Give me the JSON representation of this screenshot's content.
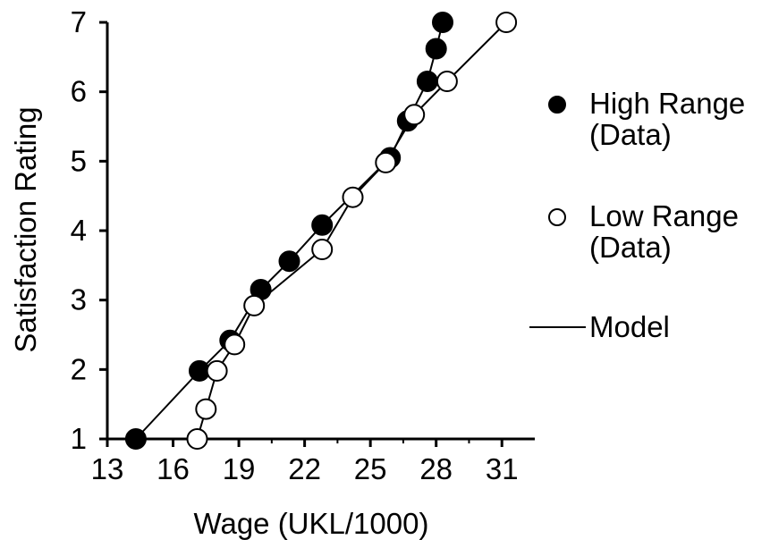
{
  "chart_data": {
    "type": "scatter",
    "title": "",
    "xlabel": "Wage (UKL/1000)",
    "ylabel": "Satisfaction Rating",
    "xlim": [
      13,
      32.5
    ],
    "ylim": [
      1,
      7
    ],
    "xticks": [
      13,
      16,
      19,
      22,
      25,
      28,
      31
    ],
    "yticks": [
      1,
      2,
      3,
      4,
      5,
      6,
      7
    ],
    "grid": false,
    "legend_placement": "right",
    "series": [
      {
        "name": "High Range (Data)",
        "marker": "filled-circle",
        "color": "#000000",
        "points": [
          {
            "x": 14.3,
            "y": 1.0
          },
          {
            "x": 17.2,
            "y": 1.98
          },
          {
            "x": 18.6,
            "y": 2.42
          },
          {
            "x": 20.0,
            "y": 3.15
          },
          {
            "x": 21.3,
            "y": 3.56
          },
          {
            "x": 22.8,
            "y": 4.08
          },
          {
            "x": 25.9,
            "y": 5.05
          },
          {
            "x": 26.7,
            "y": 5.58
          },
          {
            "x": 27.6,
            "y": 6.15
          },
          {
            "x": 28.0,
            "y": 6.62
          },
          {
            "x": 28.3,
            "y": 7.0
          }
        ],
        "model": [
          {
            "x": 14.3,
            "y": 1.0
          },
          {
            "x": 17.2,
            "y": 1.98
          },
          {
            "x": 18.6,
            "y": 2.42
          },
          {
            "x": 20.0,
            "y": 3.15
          },
          {
            "x": 21.3,
            "y": 3.56
          },
          {
            "x": 22.8,
            "y": 4.08
          },
          {
            "x": 25.9,
            "y": 5.05
          },
          {
            "x": 26.7,
            "y": 5.58
          },
          {
            "x": 27.6,
            "y": 6.15
          },
          {
            "x": 28.0,
            "y": 6.62
          },
          {
            "x": 28.3,
            "y": 7.0
          }
        ]
      },
      {
        "name": "Low Range (Data)",
        "marker": "open-circle",
        "color": "#000000",
        "points": [
          {
            "x": 17.1,
            "y": 1.0
          },
          {
            "x": 17.5,
            "y": 1.43
          },
          {
            "x": 18.0,
            "y": 1.98
          },
          {
            "x": 18.8,
            "y": 2.36
          },
          {
            "x": 19.7,
            "y": 2.92
          },
          {
            "x": 22.8,
            "y": 3.73
          },
          {
            "x": 24.2,
            "y": 4.48
          },
          {
            "x": 25.7,
            "y": 4.98
          },
          {
            "x": 27.0,
            "y": 5.67
          },
          {
            "x": 28.5,
            "y": 6.15
          },
          {
            "x": 31.2,
            "y": 7.0
          }
        ],
        "model": [
          {
            "x": 17.1,
            "y": 1.0
          },
          {
            "x": 17.5,
            "y": 1.43
          },
          {
            "x": 18.0,
            "y": 1.98
          },
          {
            "x": 18.8,
            "y": 2.36
          },
          {
            "x": 19.7,
            "y": 2.92
          },
          {
            "x": 22.8,
            "y": 3.73
          },
          {
            "x": 24.2,
            "y": 4.48
          },
          {
            "x": 25.7,
            "y": 4.98
          },
          {
            "x": 27.0,
            "y": 5.67
          },
          {
            "x": 28.5,
            "y": 6.15
          },
          {
            "x": 31.2,
            "y": 7.0
          }
        ]
      }
    ],
    "legend": [
      {
        "marker": "filled-circle",
        "line1": "High Range",
        "line2": "(Data)"
      },
      {
        "marker": "open-circle",
        "line1": "Low Range",
        "line2": "(Data)"
      },
      {
        "marker": "line",
        "line1": "Model",
        "line2": ""
      }
    ]
  }
}
